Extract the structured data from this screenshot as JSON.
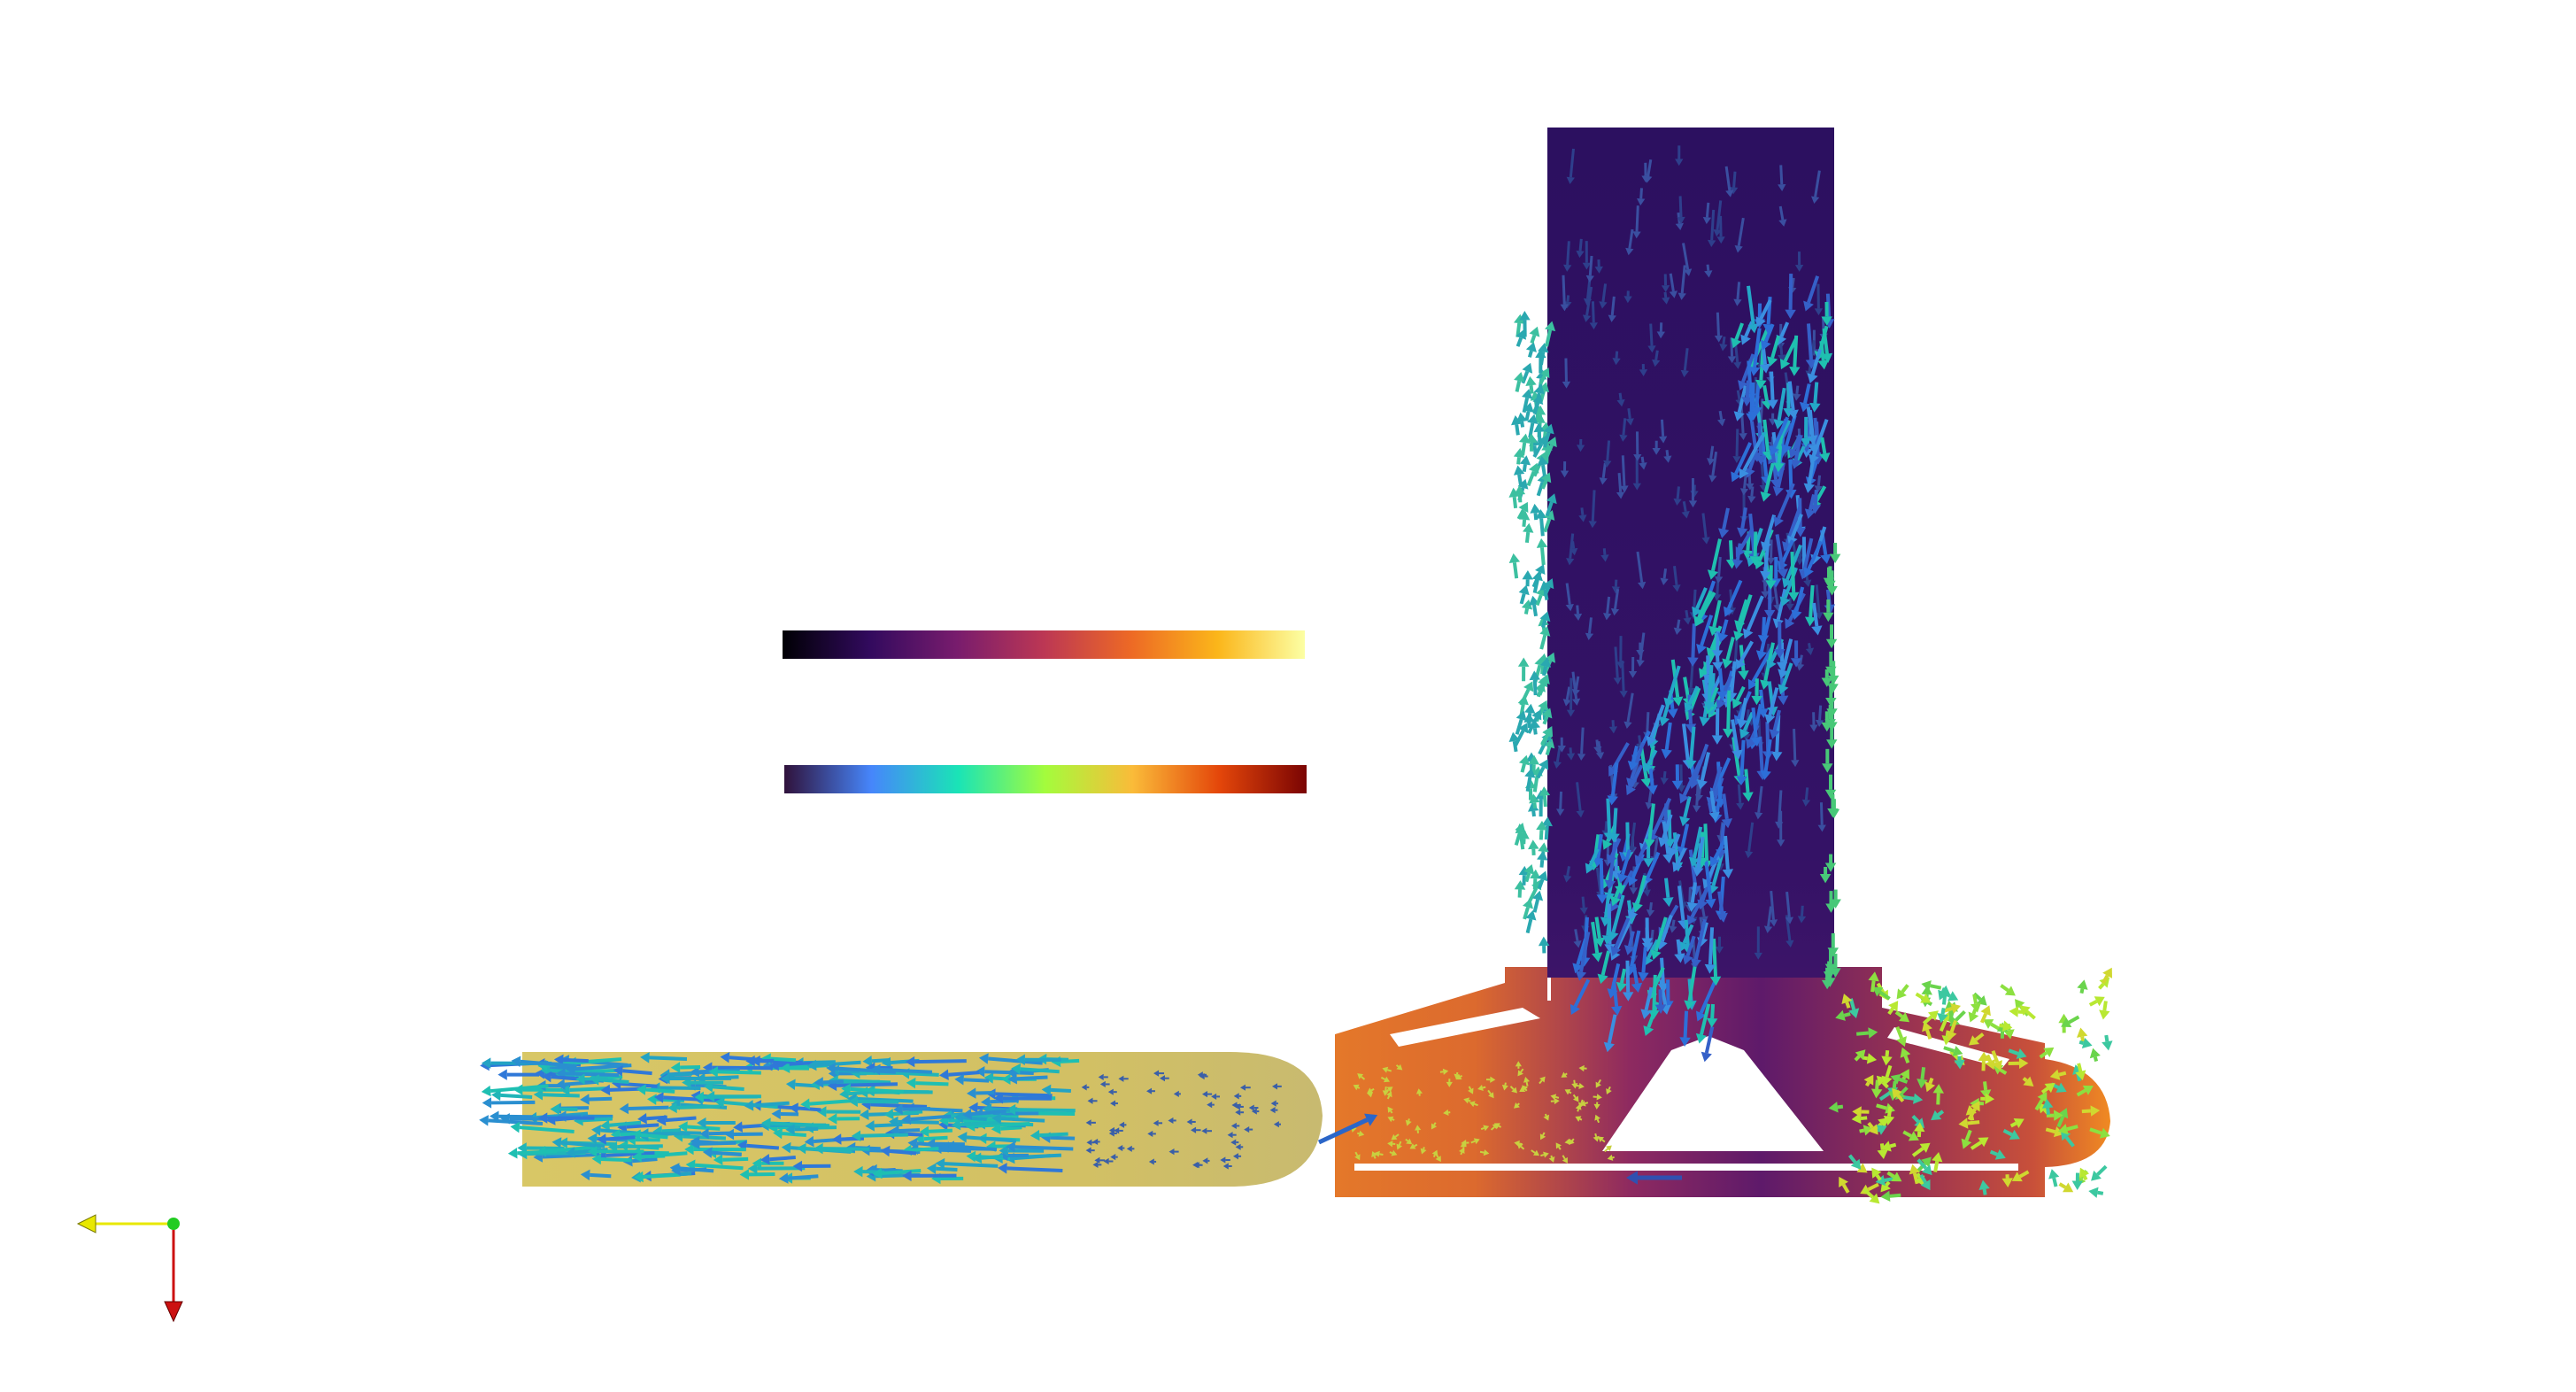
{
  "viewport": {
    "background": "#ffffff"
  },
  "colorbars": [
    {
      "name": "scalar-colormap",
      "colormap": "inferno",
      "stops": [
        "#000004",
        "#320a5e",
        "#781c6d",
        "#bc3754",
        "#ed6925",
        "#fbb61a",
        "#fcffa4"
      ]
    },
    {
      "name": "vector-colormap",
      "colormap": "turbo",
      "stops": [
        "#30123b",
        "#4686fb",
        "#1ae4b6",
        "#a4fc3c",
        "#fabb39",
        "#e4460a",
        "#7a0403"
      ]
    }
  ],
  "orientation_axes": {
    "x_color": "#e8e800",
    "y_color": "#22cc22",
    "z_color": "#cc1111"
  },
  "geometry_colors": {
    "outlet_pipe": "#d4c264",
    "outlet_pipe_dark": "#c9b860",
    "riser": "#2f1161",
    "housing_left": "#e07a2c",
    "housing_mid": "#8e2a60",
    "housing_right": "#b24145",
    "housing_nose": "#f08a22"
  }
}
